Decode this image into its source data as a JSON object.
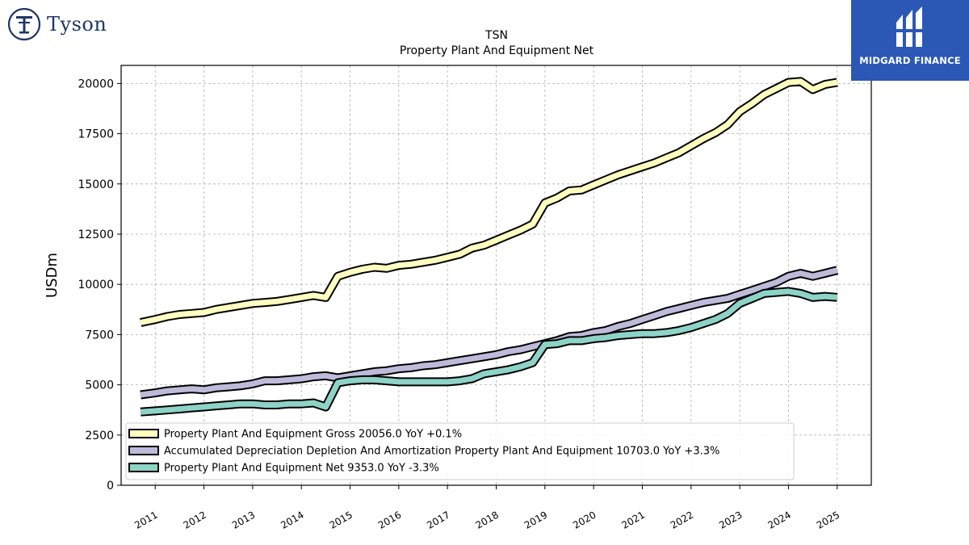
{
  "branding": {
    "left_logo_text": "Tyson",
    "right_logo_text": "MIDGARD FINANCE",
    "colors": {
      "tyson_navy": "#1f3566",
      "midgard_blue": "#2b58b5"
    }
  },
  "chart_data": {
    "type": "line",
    "title": "TSN",
    "subtitle": "Property Plant And Equipment Net",
    "xlabel": "",
    "ylabel": "USDm",
    "xlim": [
      2010.3,
      2025.7
    ],
    "ylim": [
      0,
      20900
    ],
    "yticks": [
      0,
      2500,
      5000,
      7500,
      10000,
      12500,
      15000,
      17500,
      20000
    ],
    "xticks": [
      2011,
      2012,
      2013,
      2014,
      2015,
      2016,
      2017,
      2018,
      2019,
      2020,
      2021,
      2022,
      2023,
      2024,
      2025
    ],
    "grid": true,
    "legend_position": "bottom-left",
    "series": [
      {
        "name": "Property Plant And Equipment Gross",
        "legend": "Property Plant And Equipment Gross  20056.0 YoY +0.1%",
        "color": "#ffffbf",
        "x": [
          2010.7,
          2011.0,
          2011.25,
          2011.5,
          2011.75,
          2012.0,
          2012.25,
          2012.5,
          2012.75,
          2013.0,
          2013.25,
          2013.5,
          2013.75,
          2014.0,
          2014.25,
          2014.5,
          2014.75,
          2015.0,
          2015.25,
          2015.5,
          2015.75,
          2016.0,
          2016.25,
          2016.5,
          2016.75,
          2017.0,
          2017.25,
          2017.5,
          2017.75,
          2018.0,
          2018.25,
          2018.5,
          2018.75,
          2019.0,
          2019.25,
          2019.5,
          2019.75,
          2020.0,
          2020.25,
          2020.5,
          2020.75,
          2021.0,
          2021.25,
          2021.5,
          2021.75,
          2022.0,
          2022.25,
          2022.5,
          2022.75,
          2023.0,
          2023.25,
          2023.5,
          2023.75,
          2024.0,
          2024.25,
          2024.5,
          2024.75,
          2025.0
        ],
        "values": [
          8100,
          8250,
          8400,
          8500,
          8550,
          8600,
          8750,
          8850,
          8950,
          9050,
          9100,
          9150,
          9250,
          9350,
          9450,
          9350,
          10400,
          10600,
          10750,
          10850,
          10800,
          10950,
          11000,
          11100,
          11200,
          11350,
          11500,
          11800,
          11950,
          12200,
          12450,
          12700,
          13000,
          14050,
          14300,
          14650,
          14700,
          14950,
          15200,
          15450,
          15650,
          15850,
          16050,
          16300,
          16550,
          16900,
          17250,
          17550,
          17950,
          18600,
          19000,
          19450,
          19750,
          20050,
          20100,
          19700,
          19950,
          20056
        ]
      },
      {
        "name": "Accumulated Depreciation Depletion And Amortization Property Plant And Equipment",
        "legend": "Accumulated Depreciation Depletion And Amortization Property Plant And Equipment  10703.0 YoY +3.3%",
        "color": "#bebada",
        "x": [
          2010.7,
          2011.0,
          2011.25,
          2011.5,
          2011.75,
          2012.0,
          2012.25,
          2012.5,
          2012.75,
          2013.0,
          2013.25,
          2013.5,
          2013.75,
          2014.0,
          2014.25,
          2014.5,
          2014.75,
          2015.0,
          2015.25,
          2015.5,
          2015.75,
          2016.0,
          2016.25,
          2016.5,
          2016.75,
          2017.0,
          2017.25,
          2017.5,
          2017.75,
          2018.0,
          2018.25,
          2018.5,
          2018.75,
          2019.0,
          2019.25,
          2019.5,
          2019.75,
          2020.0,
          2020.25,
          2020.5,
          2020.75,
          2021.0,
          2021.25,
          2021.5,
          2021.75,
          2022.0,
          2022.25,
          2022.5,
          2022.75,
          2023.0,
          2023.25,
          2023.5,
          2023.75,
          2024.0,
          2024.25,
          2024.5,
          2024.75,
          2025.0
        ],
        "values": [
          4500,
          4600,
          4700,
          4750,
          4800,
          4750,
          4850,
          4900,
          4950,
          5050,
          5200,
          5200,
          5250,
          5300,
          5400,
          5450,
          5350,
          5450,
          5550,
          5650,
          5700,
          5800,
          5850,
          5950,
          6000,
          6100,
          6200,
          6300,
          6400,
          6500,
          6650,
          6750,
          6900,
          7050,
          7200,
          7400,
          7450,
          7600,
          7700,
          7900,
          8050,
          8250,
          8450,
          8650,
          8800,
          8950,
          9100,
          9200,
          9300,
          9500,
          9700,
          9900,
          10100,
          10400,
          10550,
          10400,
          10550,
          10703
        ]
      },
      {
        "name": "Property Plant And Equipment Net",
        "legend": "Property Plant And Equipment Net  9353.0 YoY -3.3%",
        "color": "#8dd3c7",
        "x": [
          2010.7,
          2011.0,
          2011.25,
          2011.5,
          2011.75,
          2012.0,
          2012.25,
          2012.5,
          2012.75,
          2013.0,
          2013.25,
          2013.5,
          2013.75,
          2014.0,
          2014.25,
          2014.5,
          2014.75,
          2015.0,
          2015.25,
          2015.5,
          2015.75,
          2016.0,
          2016.25,
          2016.5,
          2016.75,
          2017.0,
          2017.25,
          2017.5,
          2017.75,
          2018.0,
          2018.25,
          2018.5,
          2018.75,
          2019.0,
          2019.25,
          2019.5,
          2019.75,
          2020.0,
          2020.25,
          2020.5,
          2020.75,
          2021.0,
          2021.25,
          2021.5,
          2021.75,
          2022.0,
          2022.25,
          2022.5,
          2022.75,
          2023.0,
          2023.25,
          2023.5,
          2023.75,
          2024.0,
          2024.25,
          2024.5,
          2024.75,
          2025.0
        ],
        "values": [
          3650,
          3700,
          3750,
          3800,
          3850,
          3900,
          3950,
          4000,
          4050,
          4050,
          4000,
          4000,
          4050,
          4050,
          4100,
          3900,
          5100,
          5200,
          5250,
          5250,
          5200,
          5150,
          5150,
          5150,
          5150,
          5150,
          5200,
          5300,
          5550,
          5650,
          5750,
          5900,
          6100,
          7000,
          7050,
          7200,
          7200,
          7300,
          7350,
          7450,
          7500,
          7550,
          7550,
          7600,
          7700,
          7850,
          8050,
          8250,
          8550,
          9050,
          9300,
          9550,
          9600,
          9650,
          9550,
          9350,
          9400,
          9353
        ]
      }
    ]
  }
}
